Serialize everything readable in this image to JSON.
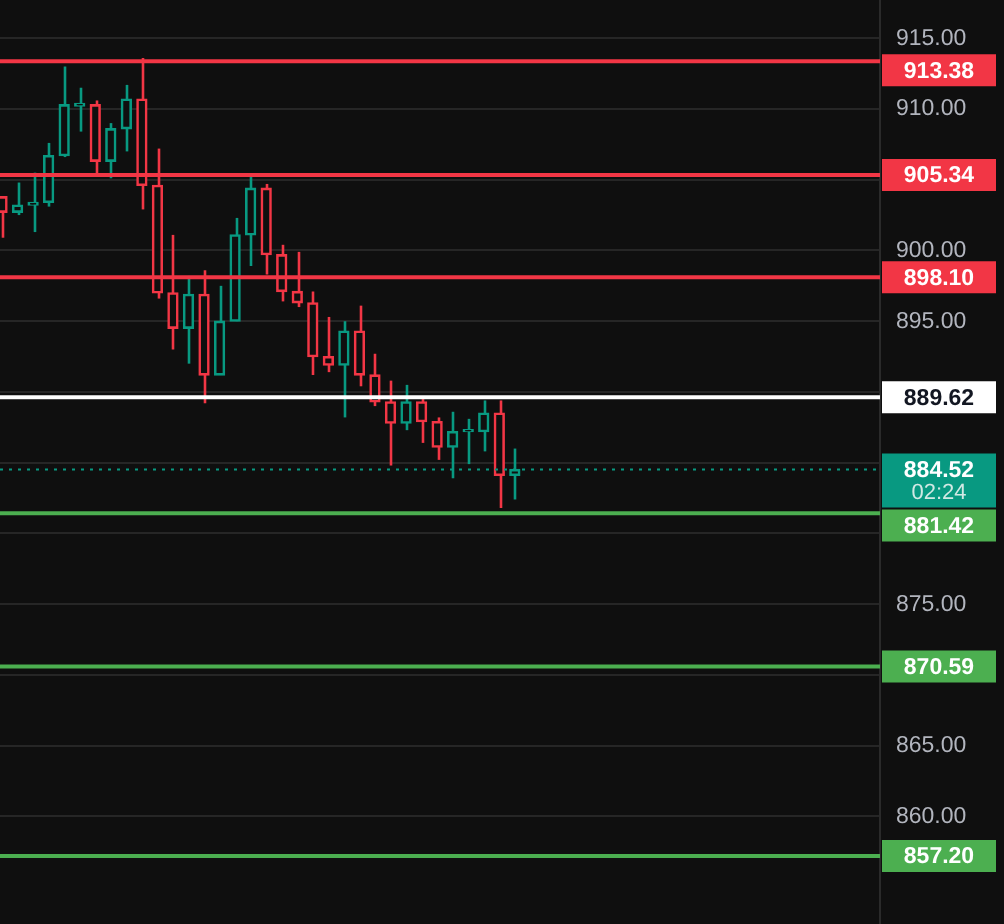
{
  "chart_data": {
    "type": "candlestick",
    "categories": [
      null,
      null,
      null,
      null,
      null,
      null,
      null,
      null,
      null,
      null,
      null,
      null,
      null,
      null,
      null,
      null,
      null,
      null,
      null,
      null,
      null,
      null,
      null,
      null,
      null,
      null,
      null,
      null,
      null,
      null,
      null,
      null,
      null,
      null,
      null,
      null,
      null,
      null,
      null,
      null,
      null,
      null,
      null,
      null,
      null,
      null,
      null,
      null,
      null,
      null,
      null,
      null,
      null,
      null,
      null,
      null,
      null
    ],
    "ohlc": [
      [
        903.8,
        903.8,
        900.9,
        902.7
      ],
      [
        902.7,
        904.8,
        902.5,
        903.2
      ],
      [
        903.2,
        905.5,
        901.3,
        903.4
      ],
      [
        903.4,
        907.6,
        903.1,
        906.7
      ],
      [
        906.7,
        913.0,
        906.6,
        910.3
      ],
      [
        910.2,
        911.5,
        908.4,
        910.4
      ],
      [
        910.3,
        910.6,
        905.2,
        906.3
      ],
      [
        906.3,
        909.0,
        905.1,
        908.6
      ],
      [
        908.6,
        911.7,
        907.0,
        910.7
      ],
      [
        910.7,
        913.6,
        902.9,
        904.6
      ],
      [
        904.6,
        907.2,
        896.6,
        897.0
      ],
      [
        897.0,
        901.1,
        893.0,
        894.5
      ],
      [
        894.5,
        898.2,
        892.0,
        896.9
      ],
      [
        896.9,
        898.6,
        889.2,
        891.2
      ],
      [
        891.2,
        897.5,
        891.2,
        895.0
      ],
      [
        895.0,
        902.3,
        895.0,
        901.1
      ],
      [
        901.1,
        905.2,
        898.9,
        904.4
      ],
      [
        904.4,
        904.7,
        898.3,
        899.7
      ],
      [
        899.7,
        900.4,
        896.4,
        897.1
      ],
      [
        897.1,
        899.9,
        896.0,
        896.3
      ],
      [
        896.3,
        897.1,
        891.2,
        892.5
      ],
      [
        892.5,
        895.3,
        891.4,
        891.9
      ],
      [
        891.9,
        895.0,
        888.2,
        894.3
      ],
      [
        894.3,
        896.1,
        890.4,
        891.2
      ],
      [
        891.2,
        892.7,
        889.0,
        889.3
      ],
      [
        889.3,
        890.8,
        884.8,
        887.8
      ],
      [
        887.8,
        890.5,
        887.3,
        889.3
      ],
      [
        889.3,
        889.5,
        886.4,
        887.9
      ],
      [
        887.9,
        888.2,
        885.2,
        886.1
      ],
      [
        886.1,
        888.6,
        883.9,
        887.2
      ],
      [
        887.2,
        888.1,
        884.9,
        887.2
      ],
      [
        887.2,
        889.4,
        885.8,
        888.5
      ],
      [
        888.5,
        889.4,
        881.8,
        884.1
      ],
      [
        884.1,
        886.0,
        882.4,
        884.52
      ],
      null,
      null,
      null,
      null,
      null,
      null,
      null,
      null,
      null,
      null,
      null,
      null,
      null,
      null,
      null,
      null,
      null,
      null,
      null,
      null,
      null,
      null,
      null
    ],
    "colors": [
      "#f23645",
      "#089981",
      "#089981",
      "#089981",
      "#089981",
      "#089981",
      "#f23645",
      "#089981",
      "#089981",
      "#f23645",
      "#f23645",
      "#f23645",
      "#089981",
      "#f23645",
      "#089981",
      "#089981",
      "#089981",
      "#f23645",
      "#f23645",
      "#f23645",
      "#f23645",
      "#f23645",
      "#089981",
      "#f23645",
      "#f23645",
      "#f23645",
      "#089981",
      "#f23645",
      "#f23645",
      "#089981",
      "#089981",
      "#089981",
      "#f23645",
      "#089981",
      null,
      null,
      null,
      null,
      null,
      null,
      null,
      null,
      null,
      null,
      null,
      null,
      null,
      null,
      null,
      null,
      null,
      null,
      null,
      null,
      null,
      null,
      null
    ],
    "ylim": [
      852.4,
      917.7
    ],
    "yticks": [
      {
        "value": 860,
        "label": "860.00"
      },
      {
        "value": 865,
        "label": "865.00"
      },
      {
        "value": 870,
        "label": null
      },
      {
        "value": 875,
        "label": "875.00"
      },
      {
        "value": 880,
        "label": null
      },
      {
        "value": 885,
        "label": null
      },
      {
        "value": 890,
        "label": null
      },
      {
        "value": 895,
        "label": "895.00"
      },
      {
        "value": 900,
        "label": "900.00"
      },
      {
        "value": 905,
        "label": null
      },
      {
        "value": 910,
        "label": "910.00"
      },
      {
        "value": 915,
        "label": "915.00"
      }
    ],
    "grid": "y",
    "legend": false,
    "tick_labels": "y",
    "ref_lines": [
      {
        "axis": "y",
        "value": 913.38,
        "label": "913.38",
        "color": "#f23645"
      },
      {
        "axis": "y",
        "value": 905.34,
        "label": "905.34",
        "color": "#f23645"
      },
      {
        "axis": "y",
        "value": 898.1,
        "label": "898.10",
        "color": "#f23645"
      },
      {
        "axis": "y",
        "value": 889.62,
        "label": "889.62",
        "color": "#ffffff"
      },
      {
        "axis": "y",
        "value": 884.52,
        "label": "884.52",
        "color": "#089981",
        "line_style": "dotted"
      },
      {
        "axis": "y",
        "value": 881.42,
        "label": "881.42",
        "color": "#4caf50"
      },
      {
        "axis": "y",
        "value": 870.59,
        "label": "870.59",
        "color": "#4caf50"
      },
      {
        "axis": "y",
        "value": 857.2,
        "label": "857.20",
        "color": "#4caf50"
      }
    ],
    "annotations": [
      "02:24"
    ]
  }
}
